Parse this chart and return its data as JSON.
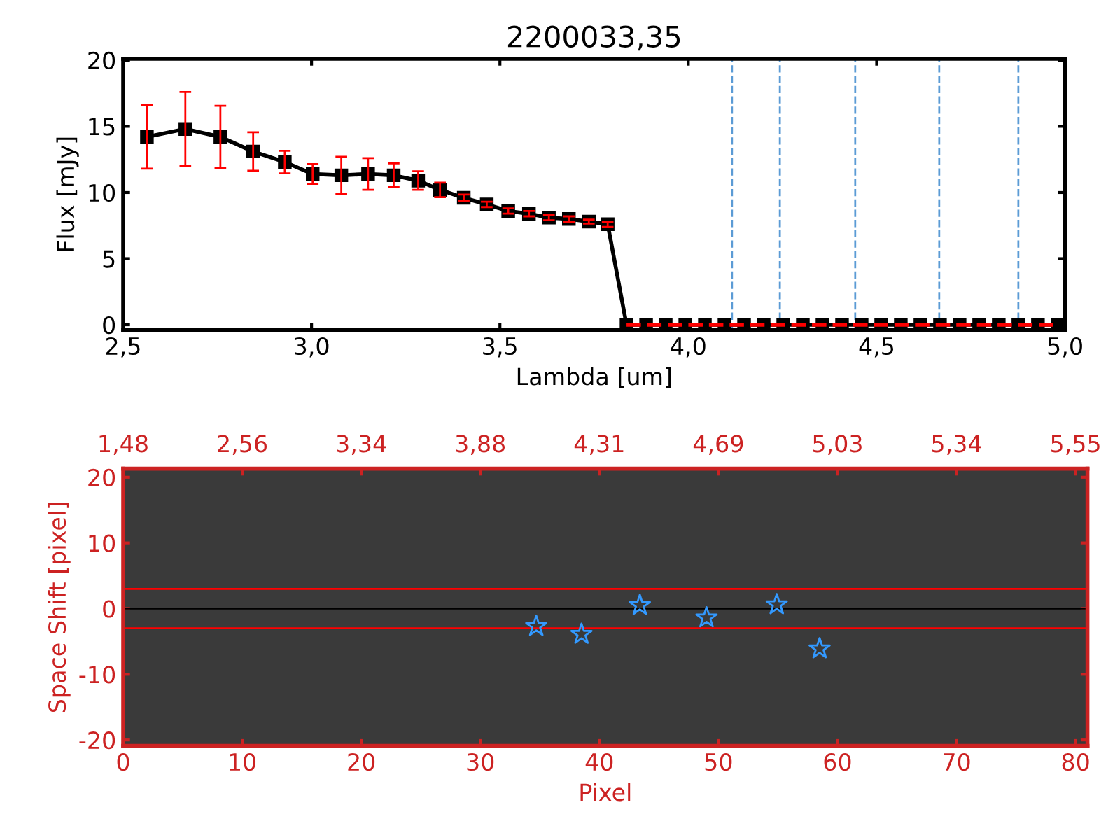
{
  "chart_data": [
    {
      "type": "line",
      "title": "2200033,35",
      "xlabel": "Lambda [um]",
      "ylabel": "Flux [mJy]",
      "xlim": [
        2.5,
        5.0
      ],
      "xticks": [
        {
          "value": 2.5,
          "label": "2,5"
        },
        {
          "value": 3.0,
          "label": "3,0"
        },
        {
          "value": 3.5,
          "label": "3,5"
        },
        {
          "value": 4.0,
          "label": "4,0"
        },
        {
          "value": 4.5,
          "label": "4,5"
        },
        {
          "value": 5.0,
          "label": "5,0"
        }
      ],
      "ylim": [
        -0.4,
        20.1
      ],
      "yticks": [
        0,
        5,
        10,
        15,
        20
      ],
      "grid": false,
      "legend": false,
      "series": [
        {
          "type": "line",
          "color": "#000000",
          "marker": "square",
          "line_style": "solid",
          "x": [
            2.563,
            2.665,
            2.758,
            2.845,
            2.929,
            3.003,
            3.079,
            3.15,
            3.218,
            3.283,
            3.341,
            3.404,
            3.465,
            3.522,
            3.577,
            3.63,
            3.683,
            3.736,
            3.786,
            3.836,
            3.888,
            3.94,
            3.992,
            4.044,
            4.096,
            4.148,
            4.2,
            4.252,
            4.304,
            4.356,
            4.408,
            4.46,
            4.512,
            4.564,
            4.616,
            4.668,
            4.72,
            4.772,
            4.824,
            4.876,
            4.928,
            4.98
          ],
          "values": [
            14.2,
            14.8,
            14.2,
            13.1,
            12.3,
            11.4,
            11.3,
            11.4,
            11.3,
            10.9,
            10.2,
            9.6,
            9.1,
            8.6,
            8.4,
            8.1,
            8.0,
            7.8,
            7.6,
            0,
            0,
            0,
            0,
            0,
            0,
            0,
            0,
            0,
            0,
            0,
            0,
            0,
            0,
            0,
            0,
            0,
            0,
            0,
            0,
            0,
            0,
            0
          ],
          "errors": [
            2.4,
            2.8,
            2.35,
            1.45,
            0.85,
            0.75,
            1.4,
            1.2,
            0.9,
            0.7,
            0.55,
            0.25,
            0.2,
            0.2,
            0.2,
            0.2,
            0.2,
            0.15,
            0.2,
            null,
            null,
            null,
            null,
            null,
            null,
            null,
            null,
            null,
            null,
            null,
            null,
            null,
            null,
            null,
            null,
            null,
            null,
            null,
            null,
            null,
            null,
            null
          ]
        },
        {
          "type": "line",
          "color": "#ff0000",
          "marker": "none",
          "line_style": "dashed",
          "x": [
            3.836,
            4.98
          ],
          "values": [
            0,
            0
          ]
        }
      ],
      "ref_lines": [
        {
          "axis": "x",
          "value": 4.116,
          "color": "#5b9bd5",
          "line_style": "dashed"
        },
        {
          "axis": "x",
          "value": 4.243,
          "color": "#5b9bd5",
          "line_style": "dashed"
        },
        {
          "axis": "x",
          "value": 4.443,
          "color": "#5b9bd5",
          "line_style": "dashed"
        },
        {
          "axis": "x",
          "value": 4.666,
          "color": "#5b9bd5",
          "line_style": "dashed"
        },
        {
          "axis": "x",
          "value": 4.876,
          "color": "#5b9bd5",
          "line_style": "dashed"
        }
      ]
    },
    {
      "type": "scatter",
      "xlabel": "Pixel",
      "ylabel": "Space Shift [pixel]",
      "xlim": [
        0,
        81
      ],
      "xticks": [
        0,
        10,
        20,
        30,
        40,
        50,
        60,
        70,
        80
      ],
      "annotations": [
        "1,48",
        "2,56",
        "3,34",
        "3,88",
        "4,31",
        "4,69",
        "5,03",
        "5,34",
        "5,55"
      ],
      "ylim": [
        -20.9,
        21.3
      ],
      "yticks": [
        -20,
        -10,
        0,
        10,
        20
      ],
      "grid": false,
      "legend": false,
      "series": [
        {
          "type": "scatter",
          "color": "#3399ff",
          "marker": "star",
          "x": [
            34.7,
            38.5,
            43.4,
            49.0,
            54.9,
            58.5
          ],
          "values": [
            -2.7,
            -3.9,
            0.5,
            -1.4,
            0.6,
            -6.1
          ]
        }
      ],
      "ref_lines": [
        {
          "axis": "y",
          "value": 3,
          "color": "#ff0000",
          "line_style": "solid"
        },
        {
          "axis": "y",
          "value": 0,
          "color": "#000000",
          "line_style": "solid"
        },
        {
          "axis": "y",
          "value": -3,
          "color": "#ff0000",
          "line_style": "solid"
        }
      ]
    }
  ]
}
